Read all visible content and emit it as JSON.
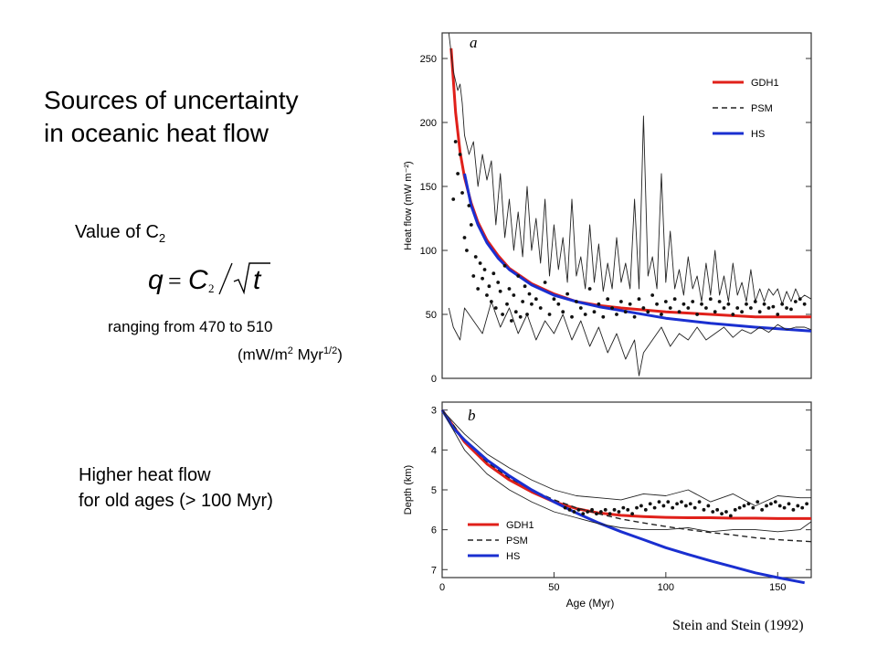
{
  "title_lines": [
    "Sources of uncertainty",
    "in oceanic heat flow"
  ],
  "c2": {
    "prefix": "Value of C",
    "sub": "2"
  },
  "formula": {
    "lhs": "q",
    "eq": "=",
    "c": "C",
    "csub": "2",
    "rad": "t"
  },
  "range": {
    "line1": "ranging from 470 to 510",
    "unit_pre": "(mW/m",
    "unit_sup1": "2",
    "unit_mid": " Myr",
    "unit_sup2": "1/2",
    "unit_post": ")"
  },
  "higher": {
    "line1": "Higher heat flow",
    "line2": "for old ages (> 100 Myr)"
  },
  "credit": "Stein and Stein (1992)",
  "colors": {
    "gdh1": "#e0201a",
    "psm": "#222222",
    "hs": "#1a2fd0",
    "data": "#111111"
  },
  "chart_data": [
    {
      "type": "line",
      "panel_label": "a",
      "xlabel": "",
      "ylabel": "Heat flow (mW m⁻²)",
      "xlim": [
        0,
        165
      ],
      "ylim": [
        0,
        270
      ],
      "yticks": [
        "0",
        "50",
        "100",
        "150",
        "200",
        "250"
      ],
      "legend": "top-right",
      "series": [
        {
          "name": "GDH1",
          "style": "solid",
          "color_key": "gdh1",
          "x": [
            4,
            6,
            8,
            10,
            13,
            16,
            20,
            25,
            30,
            40,
            50,
            60,
            70,
            80,
            100,
            120,
            140,
            165
          ],
          "y": [
            258,
            208,
            177,
            157,
            137,
            122,
            108,
            96,
            86,
            74,
            66,
            60,
            57,
            55,
            52,
            50,
            48,
            48
          ]
        },
        {
          "name": "PSM",
          "style": "dashed",
          "color_key": "psm",
          "x": [],
          "y": []
        },
        {
          "name": "HS",
          "style": "solid",
          "color_key": "hs",
          "x": [
            10,
            13,
            16,
            20,
            25,
            30,
            40,
            50,
            60,
            70,
            80,
            100,
            120,
            140,
            165
          ],
          "y": [
            160,
            135,
            120,
            106,
            94,
            85,
            73,
            65,
            60,
            56,
            53,
            47,
            43,
            40,
            37
          ]
        },
        {
          "name": "upper envelope",
          "style": "thin",
          "color_key": "psm",
          "x": [
            3,
            5,
            7,
            8,
            9,
            10,
            12,
            14,
            16,
            18,
            20,
            22,
            24,
            26,
            28,
            30,
            32,
            34,
            36,
            38,
            40,
            42,
            44,
            46,
            48,
            50,
            52,
            54,
            56,
            58,
            60,
            62,
            64,
            66,
            68,
            70,
            72,
            74,
            76,
            78,
            80,
            82,
            84,
            86,
            88,
            90,
            92,
            94,
            96,
            98,
            100,
            102,
            104,
            106,
            108,
            110,
            112,
            114,
            116,
            118,
            120,
            122,
            124,
            126,
            128,
            130,
            132,
            134,
            136,
            138,
            140,
            142,
            144,
            146,
            148,
            150,
            152,
            154,
            156,
            158,
            160,
            162,
            165
          ],
          "y": [
            270,
            240,
            225,
            230,
            215,
            190,
            175,
            185,
            150,
            175,
            155,
            170,
            120,
            160,
            110,
            140,
            100,
            130,
            95,
            150,
            100,
            125,
            90,
            140,
            80,
            120,
            85,
            110,
            75,
            140,
            80,
            95,
            70,
            120,
            75,
            105,
            68,
            90,
            70,
            110,
            75,
            90,
            70,
            140,
            70,
            205,
            80,
            95,
            70,
            160,
            75,
            115,
            70,
            85,
            65,
            95,
            70,
            80,
            60,
            90,
            65,
            100,
            65,
            80,
            60,
            90,
            65,
            75,
            60,
            85,
            60,
            70,
            60,
            70,
            65,
            70,
            58,
            68,
            60,
            70,
            62,
            65,
            62
          ]
        },
        {
          "name": "lower envelope",
          "style": "thin",
          "color_key": "psm",
          "x": [
            3,
            5,
            8,
            10,
            14,
            18,
            22,
            26,
            30,
            34,
            38,
            42,
            46,
            50,
            54,
            58,
            62,
            66,
            70,
            74,
            78,
            82,
            86,
            88,
            90,
            94,
            98,
            102,
            106,
            110,
            114,
            118,
            122,
            126,
            130,
            134,
            138,
            142,
            146,
            150,
            154,
            158,
            162,
            165
          ],
          "y": [
            55,
            40,
            30,
            55,
            45,
            35,
            60,
            40,
            55,
            35,
            50,
            30,
            45,
            35,
            50,
            30,
            45,
            25,
            40,
            20,
            35,
            15,
            30,
            2,
            20,
            30,
            40,
            25,
            35,
            30,
            40,
            30,
            35,
            40,
            32,
            38,
            35,
            40,
            36,
            42,
            38,
            40,
            40,
            38
          ]
        },
        {
          "name": "data points",
          "style": "dots",
          "color_key": "data",
          "x": [
            5,
            6,
            7,
            8,
            9,
            10,
            11,
            12,
            13,
            14,
            15,
            16,
            17,
            18,
            19,
            20,
            21,
            22,
            23,
            24,
            25,
            26,
            27,
            28,
            29,
            30,
            31,
            32,
            33,
            34,
            35,
            36,
            37,
            38,
            39,
            40,
            42,
            44,
            46,
            48,
            50,
            52,
            54,
            56,
            58,
            60,
            62,
            64,
            66,
            68,
            70,
            72,
            74,
            76,
            78,
            80,
            82,
            84,
            86,
            88,
            90,
            92,
            94,
            96,
            98,
            100,
            102,
            104,
            106,
            108,
            110,
            112,
            114,
            116,
            118,
            120,
            122,
            124,
            126,
            128,
            130,
            132,
            134,
            136,
            138,
            140,
            142,
            144,
            146,
            148,
            150,
            152,
            154,
            156,
            158,
            160,
            162
          ],
          "y": [
            140,
            185,
            160,
            175,
            145,
            110,
            100,
            135,
            120,
            80,
            95,
            70,
            90,
            78,
            85,
            65,
            72,
            60,
            82,
            55,
            75,
            68,
            50,
            88,
            58,
            70,
            45,
            65,
            52,
            80,
            48,
            60,
            72,
            50,
            66,
            58,
            62,
            55,
            75,
            50,
            62,
            58,
            52,
            66,
            48,
            60,
            55,
            50,
            70,
            52,
            58,
            48,
            62,
            55,
            50,
            60,
            52,
            58,
            48,
            62,
            55,
            52,
            65,
            58,
            50,
            60,
            55,
            62,
            52,
            58,
            55,
            60,
            50,
            58,
            55,
            62,
            52,
            60,
            55,
            58,
            50,
            55,
            52,
            58,
            55,
            60,
            52,
            58,
            55,
            56,
            50,
            58,
            55,
            54,
            60,
            62,
            58
          ]
        }
      ]
    },
    {
      "type": "line",
      "panel_label": "b",
      "xlabel": "Age (Myr)",
      "ylabel": "Depth (km)",
      "xlim": [
        0,
        165
      ],
      "ylim": [
        7.2,
        2.8
      ],
      "xticks": [
        "0",
        "50",
        "100",
        "150"
      ],
      "yticks": [
        "3",
        "4",
        "5",
        "6",
        "7"
      ],
      "legend": "bottom-left",
      "series": [
        {
          "name": "GDH1",
          "style": "solid",
          "color_key": "gdh1",
          "x": [
            0,
            5,
            10,
            20,
            30,
            40,
            50,
            60,
            70,
            80,
            90,
            100,
            110,
            120,
            130,
            140,
            150,
            165
          ],
          "y": [
            3.0,
            3.4,
            3.8,
            4.35,
            4.75,
            5.05,
            5.3,
            5.47,
            5.58,
            5.64,
            5.67,
            5.69,
            5.7,
            5.7,
            5.71,
            5.71,
            5.72,
            5.72
          ]
        },
        {
          "name": "PSM",
          "style": "dashed",
          "color_key": "psm",
          "x": [
            0,
            10,
            20,
            30,
            40,
            50,
            60,
            70,
            80,
            90,
            100,
            110,
            120,
            130,
            140,
            150,
            165
          ],
          "y": [
            3.0,
            3.75,
            4.3,
            4.7,
            5.0,
            5.25,
            5.45,
            5.6,
            5.73,
            5.83,
            5.92,
            6.0,
            6.07,
            6.13,
            6.2,
            6.25,
            6.3
          ]
        },
        {
          "name": "HS",
          "style": "solid",
          "color_key": "hs",
          "x": [
            0,
            5,
            10,
            20,
            30,
            40,
            50,
            60,
            70,
            80,
            90,
            100,
            110,
            120,
            130,
            140,
            150,
            162
          ],
          "y": [
            3.0,
            3.45,
            3.75,
            4.25,
            4.65,
            5.0,
            5.3,
            5.58,
            5.83,
            6.05,
            6.25,
            6.45,
            6.62,
            6.78,
            6.93,
            7.08,
            7.2,
            7.33
          ]
        },
        {
          "name": "upper envelope",
          "style": "thin",
          "color_key": "psm",
          "x": [
            0,
            5,
            10,
            20,
            30,
            40,
            50,
            60,
            70,
            80,
            90,
            100,
            110,
            120,
            130,
            140,
            150,
            160,
            165
          ],
          "y": [
            3.0,
            3.3,
            3.6,
            4.1,
            4.45,
            4.75,
            5.0,
            5.15,
            5.2,
            5.25,
            5.1,
            5.15,
            5.0,
            5.3,
            5.1,
            5.4,
            5.15,
            5.2,
            5.2
          ]
        },
        {
          "name": "lower envelope",
          "style": "thin",
          "color_key": "psm",
          "x": [
            0,
            5,
            10,
            20,
            30,
            40,
            50,
            60,
            70,
            80,
            90,
            100,
            110,
            120,
            130,
            140,
            150,
            160,
            165
          ],
          "y": [
            3.0,
            3.5,
            4.0,
            4.6,
            5.0,
            5.3,
            5.55,
            5.7,
            5.85,
            5.95,
            6.0,
            6.0,
            5.95,
            6.05,
            6.0,
            6.0,
            6.05,
            6.0,
            5.8
          ]
        },
        {
          "name": "data points",
          "style": "dots",
          "color_key": "data",
          "x": [
            55,
            57,
            59,
            61,
            63,
            65,
            67,
            69,
            71,
            73,
            75,
            77,
            79,
            81,
            83,
            85,
            87,
            89,
            91,
            93,
            95,
            97,
            99,
            101,
            103,
            105,
            107,
            109,
            111,
            113,
            115,
            117,
            119,
            121,
            123,
            125,
            127,
            129,
            131,
            133,
            135,
            137,
            139,
            141,
            143,
            145,
            147,
            149,
            151,
            153,
            155,
            157,
            159,
            161,
            163
          ],
          "y": [
            5.45,
            5.5,
            5.55,
            5.5,
            5.6,
            5.55,
            5.5,
            5.6,
            5.55,
            5.5,
            5.6,
            5.5,
            5.55,
            5.45,
            5.5,
            5.6,
            5.45,
            5.4,
            5.5,
            5.35,
            5.45,
            5.3,
            5.4,
            5.3,
            5.45,
            5.35,
            5.3,
            5.4,
            5.35,
            5.45,
            5.3,
            5.5,
            5.4,
            5.55,
            5.5,
            5.6,
            5.55,
            5.65,
            5.5,
            5.45,
            5.4,
            5.35,
            5.45,
            5.3,
            5.5,
            5.4,
            5.35,
            5.3,
            5.4,
            5.45,
            5.35,
            5.5,
            5.4,
            5.45,
            5.35
          ]
        }
      ]
    }
  ]
}
